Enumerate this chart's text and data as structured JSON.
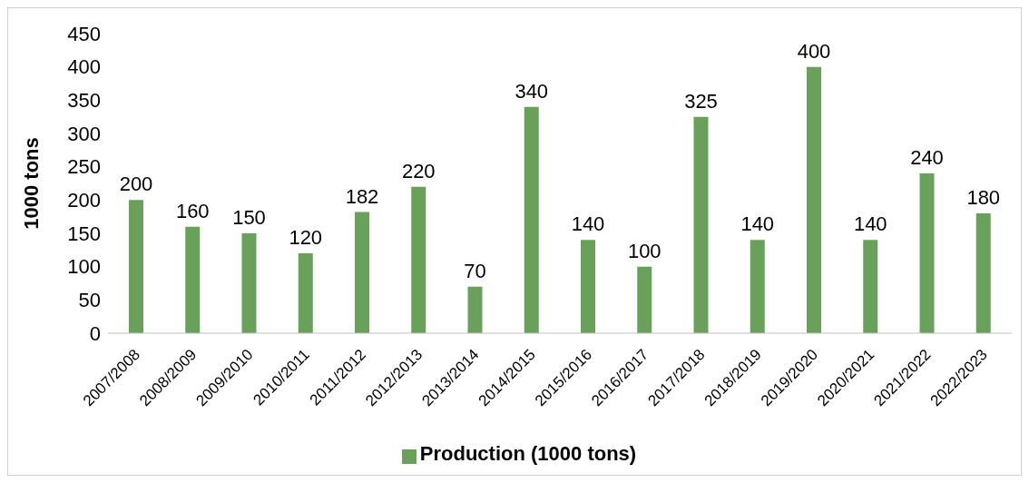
{
  "chart_data": {
    "type": "bar",
    "ylabel": "1000 tons",
    "categories": [
      "2007/2008",
      "2008/2009",
      "2009/2010",
      "2010/2011",
      "2011/2012",
      "2012/2013",
      "2013/2014",
      "2014/2015",
      "2015/2016",
      "2016/2017",
      "2017/2018",
      "2018/2019",
      "2019/2020",
      "2020/2021",
      "2021/2022",
      "2022/2023"
    ],
    "series": [
      {
        "name": "Production (1000 tons)",
        "color": "#6aa15a",
        "values": [
          200,
          160,
          150,
          120,
          182,
          220,
          70,
          340,
          140,
          100,
          325,
          140,
          400,
          140,
          240,
          180
        ]
      }
    ],
    "ylim": [
      0,
      450
    ],
    "yticks": [
      0,
      50,
      100,
      150,
      200,
      250,
      300,
      350,
      400,
      450
    ],
    "grid": false,
    "legend": "bottom",
    "data_labels": true
  }
}
